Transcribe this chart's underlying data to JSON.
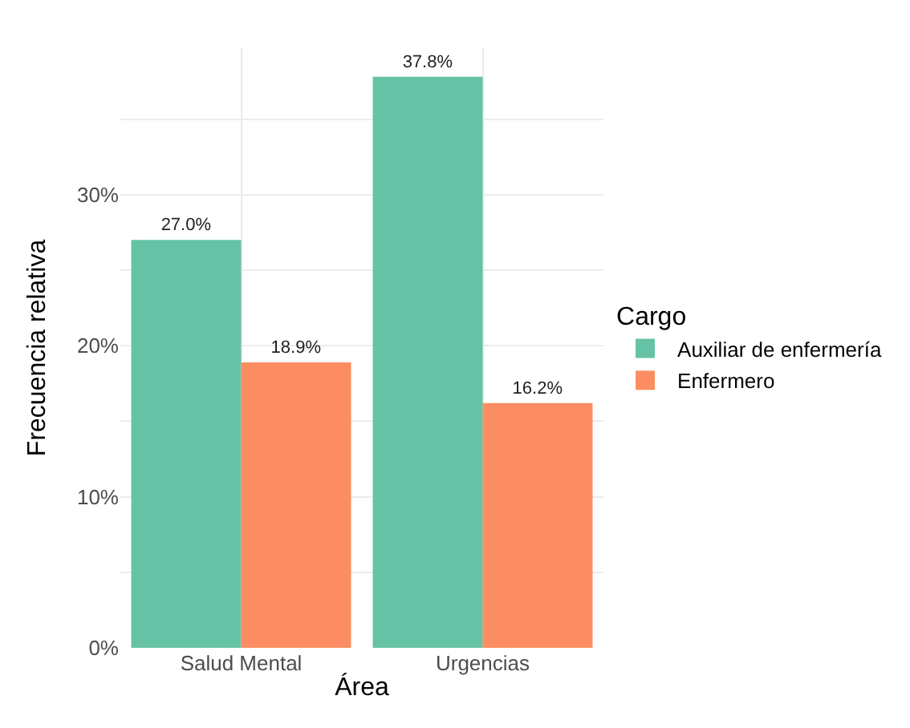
{
  "chart_data": {
    "type": "bar",
    "xlabel": "Área",
    "ylabel": "Frecuencia relativa",
    "legend_title": "Cargo",
    "categories": [
      "Salud Mental",
      "Urgencias"
    ],
    "series": [
      {
        "name": "Auxiliar de enfermería",
        "color": "#66c2a5",
        "values": [
          27.0,
          37.8
        ],
        "value_labels": [
          "27.0%",
          "37.8%"
        ]
      },
      {
        "name": "Enfermero",
        "color": "#fc8d62",
        "values": [
          18.9,
          16.2
        ],
        "value_labels": [
          "18.9%",
          "16.2%"
        ]
      }
    ],
    "ylim": [
      0,
      39.7
    ],
    "yticks": [
      {
        "value": 0,
        "label": "0%"
      },
      {
        "value": 5,
        "label": null
      },
      {
        "value": 10,
        "label": "10%"
      },
      {
        "value": 15,
        "label": null
      },
      {
        "value": 20,
        "label": "20%"
      },
      {
        "value": 25,
        "label": null
      },
      {
        "value": 30,
        "label": "30%"
      },
      {
        "value": 35,
        "label": null
      }
    ],
    "grid": true,
    "legend": "right"
  }
}
